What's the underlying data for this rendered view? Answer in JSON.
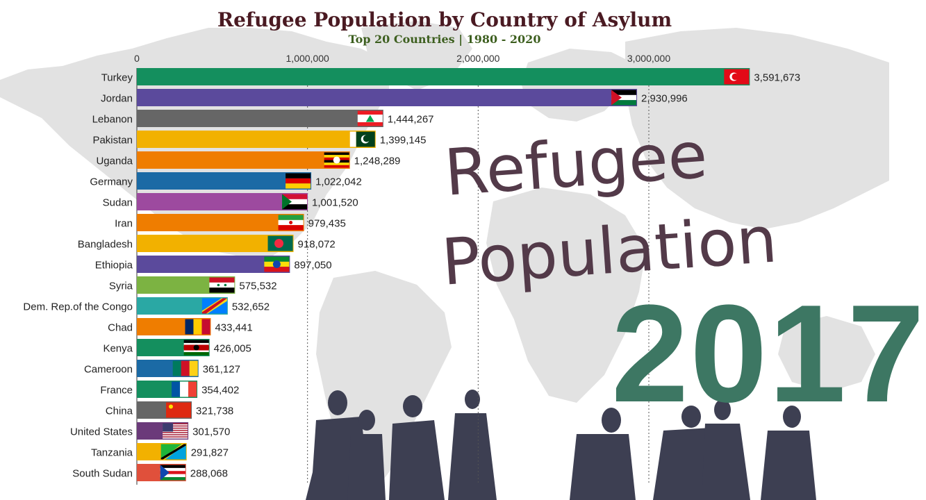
{
  "chart_data": {
    "type": "bar",
    "orientation": "horizontal",
    "title": "Refugee Population by Country of Asylum",
    "subtitle": "Top 20 Countries | 1980 - 2020",
    "year_label": "2017",
    "overlay_text": [
      "Refugee",
      "Population"
    ],
    "xlim": [
      0,
      3600000
    ],
    "ticks": [
      {
        "value": 0,
        "label": "0"
      },
      {
        "value": 1000000,
        "label": "1,000,000"
      },
      {
        "value": 2000000,
        "label": "2,000,000"
      },
      {
        "value": 3000000,
        "label": "3,000,000"
      }
    ],
    "grid": true,
    "bars": [
      {
        "country": "Turkey",
        "value": 3591673,
        "label": "3,591,673",
        "color": "#148f5e",
        "flag": "turkey-flag"
      },
      {
        "country": "Jordan",
        "value": 2930996,
        "label": "2,930,996",
        "color": "#5b4a9c",
        "flag": "jordan-flag"
      },
      {
        "country": "Lebanon",
        "value": 1444267,
        "label": "1,444,267",
        "color": "#666666",
        "flag": "lebanon-flag"
      },
      {
        "country": "Pakistan",
        "value": 1399145,
        "label": "1,399,145",
        "color": "#f2b100",
        "flag": "pakistan-flag"
      },
      {
        "country": "Uganda",
        "value": 1248289,
        "label": "1,248,289",
        "color": "#ef7d00",
        "flag": "uganda-flag"
      },
      {
        "country": "Germany",
        "value": 1022042,
        "label": "1,022,042",
        "color": "#1b6aa5",
        "flag": "germany-flag"
      },
      {
        "country": "Sudan",
        "value": 1001520,
        "label": "1,001,520",
        "color": "#9d4a9f",
        "flag": "sudan-flag"
      },
      {
        "country": "Iran",
        "value": 979435,
        "label": "979,435",
        "color": "#ef7d00",
        "flag": "iran-flag"
      },
      {
        "country": "Bangladesh",
        "value": 918072,
        "label": "918,072",
        "color": "#f2b100",
        "flag": "bangladesh-flag"
      },
      {
        "country": "Ethiopia",
        "value": 897050,
        "label": "897,050",
        "color": "#5b4a9c",
        "flag": "ethiopia-flag"
      },
      {
        "country": "Syria",
        "value": 575532,
        "label": "575,532",
        "color": "#7cb342",
        "flag": "syria-flag"
      },
      {
        "country": "Dem. Rep.of the Congo",
        "value": 532652,
        "label": "532,652",
        "color": "#2aa8a4",
        "flag": "drc-flag"
      },
      {
        "country": "Chad",
        "value": 433441,
        "label": "433,441",
        "color": "#ef7d00",
        "flag": "chad-flag"
      },
      {
        "country": "Kenya",
        "value": 426005,
        "label": "426,005",
        "color": "#148f5e",
        "flag": "kenya-flag"
      },
      {
        "country": "Cameroon",
        "value": 361127,
        "label": "361,127",
        "color": "#1b6aa5",
        "flag": "cameroon-flag"
      },
      {
        "country": "France",
        "value": 354402,
        "label": "354,402",
        "color": "#148f5e",
        "flag": "france-flag"
      },
      {
        "country": "China",
        "value": 321738,
        "label": "321,738",
        "color": "#666666",
        "flag": "china-flag"
      },
      {
        "country": "United States",
        "value": 301570,
        "label": "301,570",
        "color": "#6b3a7a",
        "flag": "usa-flag"
      },
      {
        "country": "Tanzania",
        "value": 291827,
        "label": "291,827",
        "color": "#f2b100",
        "flag": "tanzania-flag"
      },
      {
        "country": "South Sudan",
        "value": 288068,
        "label": "288,068",
        "color": "#e0503b",
        "flag": "south-sudan-flag"
      }
    ]
  }
}
